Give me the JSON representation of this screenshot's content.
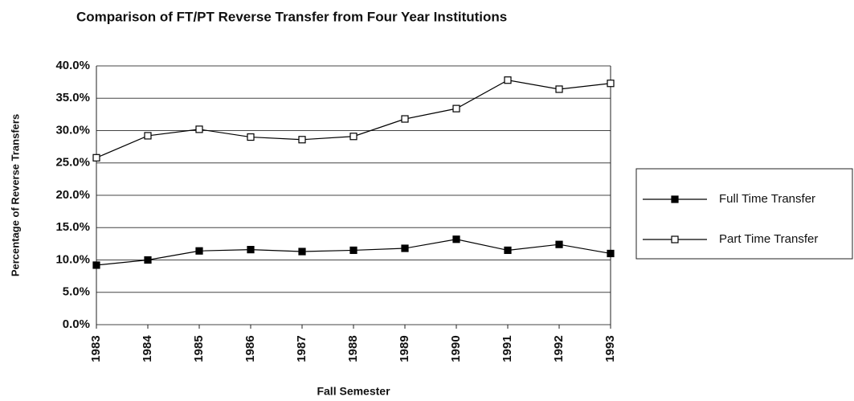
{
  "chart_data": {
    "type": "line",
    "title": "Comparison of FT/PT Reverse Transfer from Four Year Institutions",
    "xlabel": "Fall Semester",
    "ylabel": "Percentage of Reverse Transfers",
    "categories": [
      "1983",
      "1984",
      "1985",
      "1986",
      "1987",
      "1988",
      "1989",
      "1990",
      "1991",
      "1992",
      "1993"
    ],
    "series": [
      {
        "name": "Full Time Transfer",
        "color": "#000000",
        "marker": "filled-square",
        "values": [
          9.2,
          10.0,
          11.4,
          11.6,
          11.3,
          11.5,
          11.8,
          13.2,
          11.5,
          12.4,
          11.0
        ]
      },
      {
        "name": "Part Time Transfer",
        "color": "#000000",
        "marker": "open-square",
        "values": [
          25.8,
          29.2,
          30.2,
          29.0,
          28.6,
          29.1,
          31.8,
          33.4,
          37.8,
          36.4,
          37.3
        ]
      }
    ],
    "ylim": [
      0,
      40
    ],
    "yticks": [
      {
        "value": 0,
        "label": "0.0%"
      },
      {
        "value": 5,
        "label": "5.0%"
      },
      {
        "value": 10,
        "label": "10.0%"
      },
      {
        "value": 15,
        "label": "15.0%"
      },
      {
        "value": 20,
        "label": "20.0%"
      },
      {
        "value": 25,
        "label": "25.0%"
      },
      {
        "value": 30,
        "label": "30.0%"
      },
      {
        "value": 35,
        "label": "35.0%"
      },
      {
        "value": 40,
        "label": "40.0%"
      }
    ],
    "grid": true,
    "legend": "right"
  }
}
